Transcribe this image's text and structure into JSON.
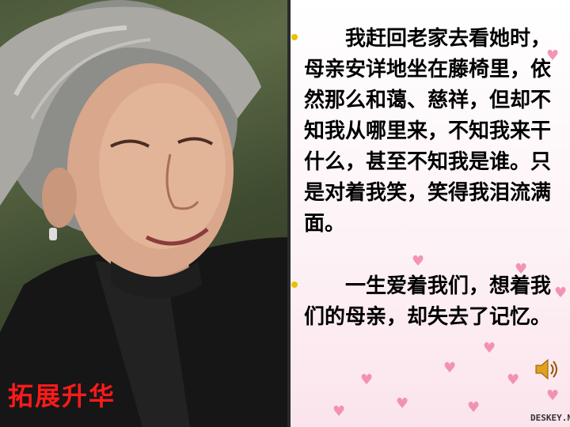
{
  "caption": "拓展升华",
  "paragraph1": "　　我赶回老家去看她时，母亲安详地坐在藤椅里，依然那么和蔼、慈祥，但却不知我从哪里来，不知我来干什么，甚至不知我是谁。只是对着我笑，笑得我泪流满面。",
  "paragraph2": "　　一生爱着我们，想着我们的母亲，却失去了记忆。",
  "logo": "DESKEY.NET",
  "colors": {
    "caption": "#ff1a1a",
    "bullet": "#e8c000",
    "heart": "#f27ca6"
  }
}
